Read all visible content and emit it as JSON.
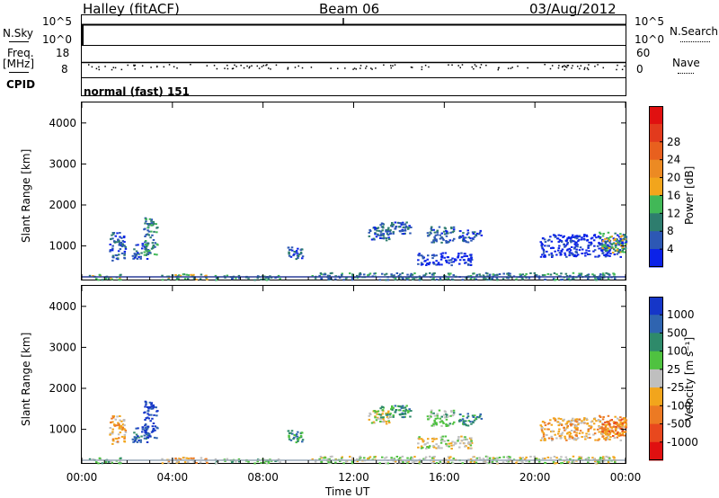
{
  "header": {
    "station": "Halley (fitACF)",
    "beam": "Beam 06",
    "date": "03/Aug/2012"
  },
  "strips": {
    "nsky_label": "N.Sky",
    "nsky_ticks": [
      "10^5",
      "10^0"
    ],
    "nsearch_label": "N.Search",
    "nsearch_ticks": [
      "10^5",
      "10^0"
    ],
    "freq_label_top": "Freq.",
    "freq_label_bottom": "[MHz]",
    "freq_ticks": [
      "18",
      "8"
    ],
    "nave_label": "Nave",
    "nave_ticks": [
      "60",
      "0"
    ],
    "cpid_label": "CPID",
    "cpid_value": "normal (fast) 151"
  },
  "chart_data": [
    {
      "type": "heatmap",
      "name": "power",
      "ylabel": "Slant Range [km]",
      "xlabel": "",
      "ylim": [
        180,
        4500
      ],
      "xlim": [
        0,
        24
      ],
      "yticks": [
        "1000",
        "2000",
        "3000",
        "4000"
      ],
      "colorbar_label": "Power [dB]",
      "colorbar_ticks": [
        "4",
        "8",
        "12",
        "16",
        "20",
        "24",
        "28"
      ],
      "colorbar_colors": [
        "#0b22e8",
        "#2d58b4",
        "#2e7d6e",
        "#41b857",
        "#f2a51c",
        "#ec8a23",
        "#e8601e",
        "#e23a1d",
        "#e01010"
      ],
      "clusters": [
        {
          "t": [
            0.3,
            1.8
          ],
          "r": [
            190,
            320
          ],
          "level": 3
        },
        {
          "t": [
            1.2,
            1.9
          ],
          "r": [
            650,
            1350
          ],
          "level": 1
        },
        {
          "t": [
            2.2,
            2.9
          ],
          "r": [
            700,
            1100
          ],
          "level": 1
        },
        {
          "t": [
            2.7,
            3.3
          ],
          "r": [
            800,
            1700
          ],
          "level": 2
        },
        {
          "t": [
            3.5,
            5.5
          ],
          "r": [
            190,
            330
          ],
          "level": 3
        },
        {
          "t": [
            5.8,
            8.8
          ],
          "r": [
            190,
            300
          ],
          "level": 2
        },
        {
          "t": [
            9.0,
            9.8
          ],
          "r": [
            700,
            1000
          ],
          "level": 1
        },
        {
          "t": [
            12.6,
            13.6
          ],
          "r": [
            1150,
            1500
          ],
          "level": 1
        },
        {
          "t": [
            13.0,
            14.5
          ],
          "r": [
            1300,
            1600
          ],
          "level": 1
        },
        {
          "t": [
            14.8,
            17.2
          ],
          "r": [
            550,
            850
          ],
          "level": 0
        },
        {
          "t": [
            15.2,
            16.4
          ],
          "r": [
            1100,
            1500
          ],
          "level": 1
        },
        {
          "t": [
            16.6,
            17.6
          ],
          "r": [
            1100,
            1400
          ],
          "level": 1
        },
        {
          "t": [
            20.2,
            24.0
          ],
          "r": [
            750,
            1300
          ],
          "level": 0
        },
        {
          "t": [
            22.8,
            24.0
          ],
          "r": [
            850,
            1350
          ],
          "level": 3
        },
        {
          "t": [
            10.0,
            23.5
          ],
          "r": [
            190,
            360
          ],
          "level": 2
        }
      ]
    },
    {
      "type": "heatmap",
      "name": "velocity",
      "ylabel": "Slant Range [km]",
      "xlabel": "Time UT",
      "ylim": [
        180,
        4500
      ],
      "xlim": [
        0,
        24
      ],
      "yticks": [
        "1000",
        "2000",
        "3000",
        "4000"
      ],
      "xticks": [
        "00:00",
        "04:00",
        "08:00",
        "12:00",
        "16:00",
        "20:00",
        "00:00"
      ],
      "colorbar_label": "Velocity [m s⁻¹]",
      "colorbar_ticks": [
        "1000",
        "500",
        "100",
        "25",
        "-25",
        "-100",
        "-500",
        "-1000"
      ],
      "colorbar_colors": [
        "#1536c8",
        "#2f64b0",
        "#2e8a6a",
        "#4fc240",
        "#bfbfbf",
        "#f2a51c",
        "#ec7a23",
        "#e8481e",
        "#e01010"
      ],
      "clusters": [
        {
          "t": [
            0.3,
            1.8
          ],
          "r": [
            190,
            320
          ],
          "level": 3
        },
        {
          "t": [
            1.2,
            1.9
          ],
          "r": [
            650,
            1350
          ],
          "level": 5
        },
        {
          "t": [
            2.2,
            2.9
          ],
          "r": [
            700,
            1100
          ],
          "level": 1
        },
        {
          "t": [
            2.7,
            3.3
          ],
          "r": [
            800,
            1700
          ],
          "level": 0
        },
        {
          "t": [
            3.5,
            5.5
          ],
          "r": [
            190,
            330
          ],
          "level": 5
        },
        {
          "t": [
            5.8,
            8.8
          ],
          "r": [
            190,
            300
          ],
          "level": 3
        },
        {
          "t": [
            9.0,
            9.8
          ],
          "r": [
            700,
            1000
          ],
          "level": 2
        },
        {
          "t": [
            12.6,
            13.6
          ],
          "r": [
            1150,
            1500
          ],
          "level": 4
        },
        {
          "t": [
            13.0,
            14.5
          ],
          "r": [
            1300,
            1600
          ],
          "level": 2
        },
        {
          "t": [
            14.8,
            17.2
          ],
          "r": [
            550,
            850
          ],
          "level": 4
        },
        {
          "t": [
            15.2,
            16.4
          ],
          "r": [
            1100,
            1500
          ],
          "level": 3
        },
        {
          "t": [
            16.6,
            17.6
          ],
          "r": [
            1100,
            1400
          ],
          "level": 2
        },
        {
          "t": [
            20.2,
            24.0
          ],
          "r": [
            750,
            1300
          ],
          "level": 5
        },
        {
          "t": [
            22.8,
            24.0
          ],
          "r": [
            850,
            1350
          ],
          "level": 6
        },
        {
          "t": [
            10.0,
            23.5
          ],
          "r": [
            190,
            360
          ],
          "level": 4
        }
      ]
    }
  ]
}
